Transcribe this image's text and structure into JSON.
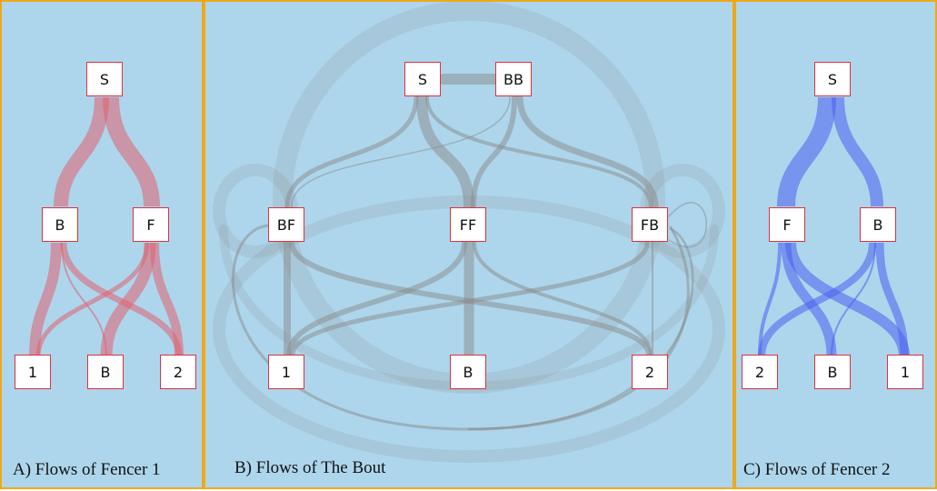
{
  "panels": {
    "a": {
      "caption": "A) Flows of Fencer 1",
      "nodes": {
        "s": "S",
        "b": "B",
        "f": "F",
        "one": "1",
        "bottom_b": "B",
        "two": "2"
      },
      "flow_color": "#e06070"
    },
    "b": {
      "caption": "B) Flows of The Bout",
      "nodes": {
        "s": "S",
        "bb": "BB",
        "bf": "BF",
        "ff": "FF",
        "fb": "FB",
        "one": "1",
        "bottom_b": "B",
        "two": "2"
      },
      "flow_color": "#8a8a8a"
    },
    "c": {
      "caption": "C) Flows of Fencer 2",
      "nodes": {
        "s": "S",
        "f": "F",
        "b": "B",
        "two": "2",
        "bottom_b": "B",
        "one": "1"
      },
      "flow_color": "#4a5ef0"
    }
  },
  "colors": {
    "panel_background": "#add6ec",
    "panel_border": "#f0a818",
    "node_border": "#e0303a"
  }
}
